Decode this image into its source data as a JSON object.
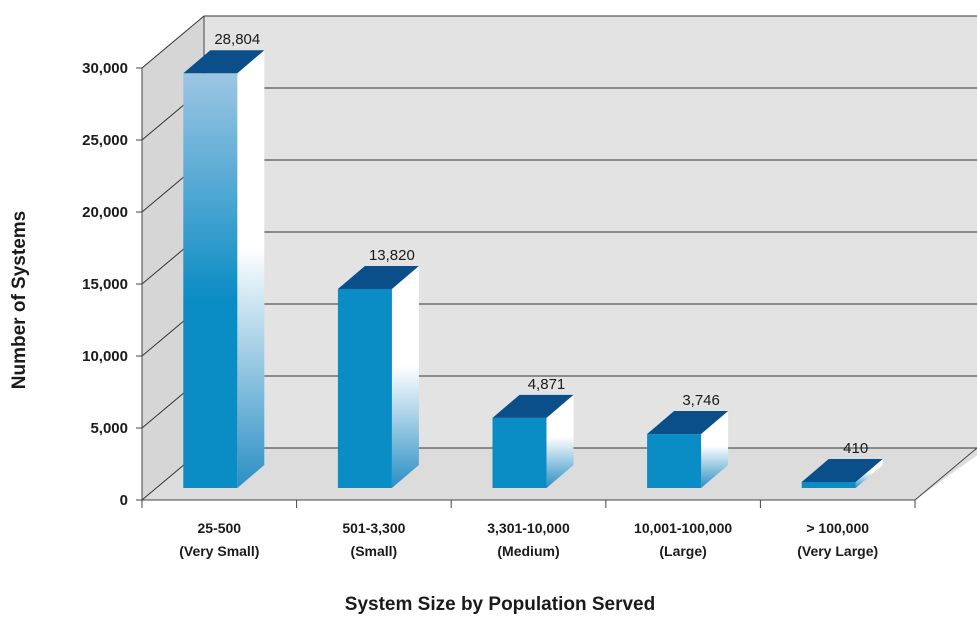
{
  "chart_data": {
    "type": "bar",
    "title": "",
    "xlabel": "System Size by Population Served",
    "ylabel": "Number of Systems",
    "ylim": [
      0,
      30000
    ],
    "y_ticks": [
      "0",
      "5,000",
      "10,000",
      "15,000",
      "20,000",
      "25,000",
      "30,000"
    ],
    "y_tick_values": [
      0,
      5000,
      10000,
      15000,
      20000,
      25000,
      30000
    ],
    "categories": [
      {
        "line1": "25-500",
        "line2": "(Very Small)"
      },
      {
        "line1": "501-3,300",
        "line2": "(Small)"
      },
      {
        "line1": "3,301-10,000",
        "line2": "(Medium)"
      },
      {
        "line1": "10,001-100,000",
        "line2": "(Large)"
      },
      {
        "line1": "> 100,000",
        "line2": "(Very Large)"
      }
    ],
    "values": [
      28804,
      13820,
      4871,
      3746,
      410
    ],
    "value_labels": [
      "28,804",
      "13,820",
      "4,871",
      "3,746",
      "410"
    ],
    "grid": true,
    "style": "3d",
    "colors": {
      "bar_front": "#0a8cc4",
      "bar_top": "#0a4f8a",
      "bar_side_light": "#ffffff",
      "wall": "#e3e3e3",
      "floor": "#dcdcdc",
      "grid": "#333333"
    }
  }
}
